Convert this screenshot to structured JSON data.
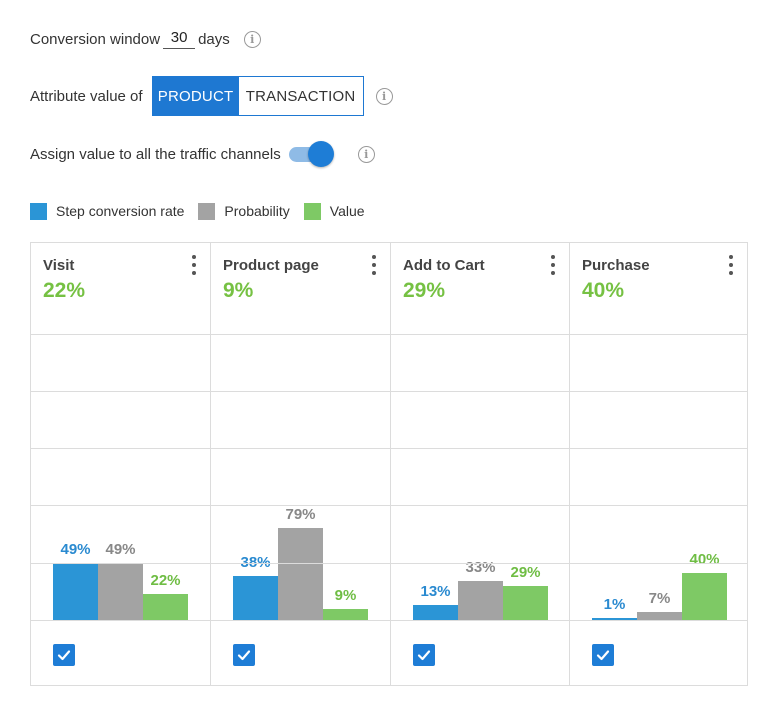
{
  "conversion_window": {
    "label_before": "Conversion window",
    "value": "30",
    "label_after": "days"
  },
  "attribute": {
    "label": "Attribute value of",
    "options": [
      "PRODUCT",
      "TRANSACTION"
    ],
    "selected": "PRODUCT"
  },
  "assign": {
    "label": "Assign value to all the traffic channels",
    "enabled": true
  },
  "info_icon_glyph": "i",
  "colors": {
    "step": "#2b95d6",
    "probability": "#a3a3a3",
    "value": "#7ec965",
    "value_text": "#6fbd44",
    "step_text": "#2a8ad0",
    "prob_text": "#888888",
    "accent": "#1e78d2"
  },
  "chart_data": {
    "type": "bar",
    "categories": [
      "Visit",
      "Product page",
      "Add to Cart",
      "Purchase"
    ],
    "stage_values": [
      "22%",
      "9%",
      "29%",
      "40%"
    ],
    "series": [
      {
        "name": "Step conversion rate",
        "values": [
          49,
          38,
          13,
          1
        ]
      },
      {
        "name": "Probability",
        "values": [
          49,
          79,
          33,
          7
        ]
      },
      {
        "name": "Value",
        "values": [
          22,
          9,
          29,
          40
        ]
      }
    ],
    "unit": "%",
    "ylim": [
      0,
      100
    ],
    "legend_position": "top-left",
    "checked": [
      true,
      true,
      true,
      true
    ]
  }
}
